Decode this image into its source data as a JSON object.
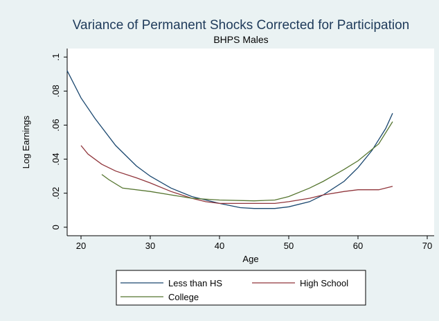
{
  "chart_data": {
    "type": "line",
    "title": "Variance of Permanent Shocks Corrected for Participation",
    "subtitle": "BHPS Males",
    "x_label": "Age",
    "y_label": "Log Earnings",
    "xlim": [
      18,
      71
    ],
    "xticks": [
      20,
      30,
      40,
      50,
      60,
      70
    ],
    "ylim": [
      -0.005,
      0.105
    ],
    "yticks": [
      0,
      {
        "value": 0.02,
        "label": ".02"
      },
      {
        "value": 0.04,
        "label": ".04"
      },
      {
        "value": 0.06,
        "label": ".06"
      },
      {
        "value": 0.08,
        "label": ".08"
      },
      {
        "value": 0.1,
        "label": ".1"
      }
    ],
    "grid": false,
    "legend": "bottom",
    "series": [
      {
        "name": "Less than HS",
        "color": "#1a476f",
        "x": [
          18,
          20,
          22,
          25,
          28,
          30,
          33,
          36,
          40,
          43,
          45,
          48,
          50,
          53,
          55,
          58,
          60,
          62,
          64,
          65
        ],
        "values": [
          0.092,
          0.076,
          0.064,
          0.048,
          0.036,
          0.03,
          0.023,
          0.018,
          0.014,
          0.0115,
          0.011,
          0.011,
          0.012,
          0.015,
          0.019,
          0.027,
          0.035,
          0.045,
          0.058,
          0.067
        ]
      },
      {
        "name": "High School",
        "color": "#90353b",
        "x": [
          20,
          21,
          23,
          25,
          28,
          30,
          33,
          36,
          38,
          40,
          45,
          48,
          50,
          53,
          55,
          58,
          60,
          63,
          65
        ],
        "values": [
          0.048,
          0.043,
          0.037,
          0.033,
          0.029,
          0.026,
          0.021,
          0.017,
          0.015,
          0.014,
          0.014,
          0.014,
          0.015,
          0.017,
          0.019,
          0.021,
          0.022,
          0.022,
          0.024
        ]
      },
      {
        "name": "College",
        "color": "#55752f",
        "x": [
          23,
          24,
          26,
          30,
          33,
          36,
          40,
          45,
          48,
          50,
          53,
          55,
          58,
          60,
          63,
          65
        ],
        "values": [
          0.031,
          0.028,
          0.023,
          0.021,
          0.019,
          0.017,
          0.016,
          0.0155,
          0.016,
          0.018,
          0.023,
          0.027,
          0.034,
          0.039,
          0.049,
          0.062
        ]
      }
    ]
  }
}
